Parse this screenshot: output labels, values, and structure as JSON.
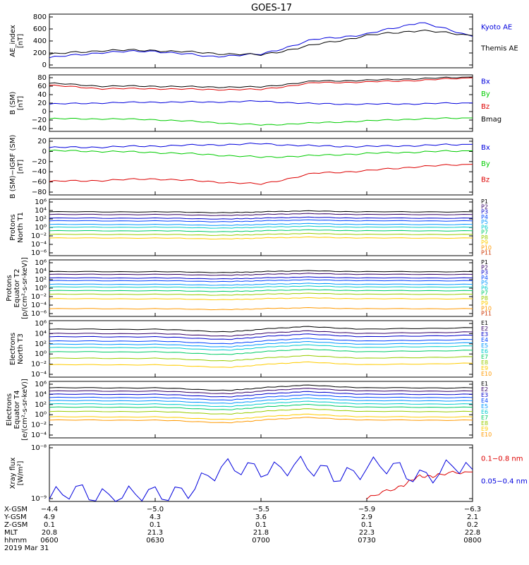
{
  "title": "GOES-17",
  "colors": {
    "black": "#000000",
    "blue": "#0000dd",
    "green": "#00cc00",
    "red": "#dd0000",
    "p": [
      "#000000",
      "#330066",
      "#0000cc",
      "#0044ff",
      "#0099ff",
      "#00cccc",
      "#00cc66",
      "#99cc00",
      "#ffcc00",
      "#ff9900",
      "#cc3300"
    ]
  },
  "panels": [
    {
      "ylabel": [
        "AE_index",
        "[nT]"
      ],
      "ticks": [
        "800",
        "600",
        "400",
        "200",
        "0"
      ],
      "legend": [
        {
          "text": "Kyoto AE",
          "color": "blue"
        },
        {
          "text": "Themis AE",
          "color": "black"
        }
      ]
    },
    {
      "ylabel": [
        "B (SM)",
        "[nT]"
      ],
      "ticks": [
        "80",
        "60",
        "40",
        "20",
        "0",
        "−20",
        "−40"
      ],
      "legend": [
        {
          "text": "Bx",
          "color": "blue"
        },
        {
          "text": "By",
          "color": "green"
        },
        {
          "text": "Bz",
          "color": "red"
        },
        {
          "text": "Bmag",
          "color": "black"
        }
      ]
    },
    {
      "ylabel": [
        "B (SM)−IGRF (SM)",
        "[nT]"
      ],
      "ticks": [
        "20",
        "0",
        "−20",
        "−40",
        "−60",
        "−80"
      ],
      "legend": [
        {
          "text": "Bx",
          "color": "blue"
        },
        {
          "text": "By",
          "color": "green"
        },
        {
          "text": "Bz",
          "color": "red"
        }
      ]
    },
    {
      "ylabel": [
        "Protons",
        "North T1"
      ],
      "ticks": [
        "10⁶",
        "10⁴",
        "10²",
        "10⁰",
        "10⁻²",
        "10⁻⁴",
        "10⁻⁶"
      ],
      "legend": [
        "P1",
        "P2",
        "P3",
        "P4",
        "P5",
        "P6",
        "P7",
        "P8",
        "P9",
        "P10",
        "P11"
      ]
    },
    {
      "ylabel": [
        "Protons",
        "Equator T2",
        "[p/(cm²-s-sr-keV)]"
      ],
      "ticks": [
        "10⁶",
        "10⁴",
        "10²",
        "10⁰",
        "10⁻²",
        "10⁻⁴",
        "10⁻⁶"
      ],
      "legend": [
        "P1",
        "P2",
        "P3",
        "P4",
        "P5",
        "P6",
        "P7",
        "P8",
        "P9",
        "P10",
        "P11"
      ]
    },
    {
      "ylabel": [
        "Electrons",
        "North T3"
      ],
      "ticks": [
        "10⁶",
        "10⁴",
        "10²",
        "10⁰",
        "10⁻²",
        "10⁻⁴"
      ],
      "legend": [
        "E1",
        "E2",
        "E3",
        "E4",
        "E5",
        "E6",
        "E7",
        "E8",
        "E9",
        "E10"
      ]
    },
    {
      "ylabel": [
        "Electrons",
        "Equator T4",
        "[e/(cm²-s-sr-keV)]"
      ],
      "ticks": [
        "10⁶",
        "10⁴",
        "10²",
        "10⁰",
        "10⁻²",
        "10⁻⁴"
      ],
      "legend": [
        "E1",
        "E2",
        "E3",
        "E4",
        "E5",
        "E6",
        "E7",
        "E8",
        "E9",
        "E10"
      ]
    },
    {
      "ylabel": [
        "Xray flux",
        "[W/m²]"
      ],
      "ticks": [
        "10⁻⁸",
        "10⁻⁹"
      ],
      "legend": [
        {
          "text": "0.1−0.8 nm",
          "color": "red"
        },
        {
          "text": "0.05−0.4 nm",
          "color": "blue"
        }
      ]
    }
  ],
  "footer": {
    "labels": [
      "X-GSM",
      "Y-GSM",
      "Z-GSM",
      "MLT",
      "hhmm",
      "2019 Mar 31"
    ],
    "columns": [
      [
        "−4.4",
        "4.9",
        "0.1",
        "20.8",
        "0600"
      ],
      [
        "−5.0",
        "4.3",
        "0.1",
        "21.3",
        "0630"
      ],
      [
        "−5.5",
        "3.6",
        "0.1",
        "21.8",
        "0700"
      ],
      [
        "−5.9",
        "2.9",
        "0.1",
        "22.3",
        "0730"
      ],
      [
        "−6.3",
        "2.1",
        "0.2",
        "22.8",
        "0800"
      ]
    ]
  },
  "chart_data": {
    "type": "line",
    "x_label": "hhmm",
    "x_ticks": [
      "0600",
      "0630",
      "0700",
      "0730",
      "0800"
    ],
    "panels": [
      {
        "name": "AE_index",
        "ylim": [
          0,
          800
        ],
        "x_hours": [
          6.0,
          6.25,
          6.5,
          6.75,
          7.0,
          7.25,
          7.5,
          7.75,
          8.0
        ],
        "series": [
          {
            "name": "Kyoto AE",
            "values": [
              150,
              230,
              250,
              170,
              200,
              420,
              500,
              680,
              470
            ]
          },
          {
            "name": "Themis AE",
            "values": [
              200,
              260,
              260,
              220,
              190,
              340,
              480,
              560,
              480
            ]
          }
        ]
      },
      {
        "name": "B (SM)",
        "ylim": [
          -50,
          85
        ],
        "x_hours": [
          6.0,
          6.25,
          6.5,
          6.75,
          7.0,
          7.25,
          7.5,
          7.75,
          8.0
        ],
        "series": [
          {
            "name": "Bx",
            "values": [
              15,
              18,
              20,
              20,
              22,
              16,
              15,
              16,
              18
            ]
          },
          {
            "name": "By",
            "values": [
              -20,
              -20,
              -22,
              -28,
              -35,
              -30,
              -25,
              -20,
              -18
            ]
          },
          {
            "name": "Bz",
            "values": [
              60,
              52,
              52,
              50,
              50,
              66,
              68,
              72,
              78
            ]
          },
          {
            "name": "Bmag",
            "values": [
              65,
              58,
              58,
              56,
              56,
              70,
              72,
              76,
              80
            ]
          }
        ]
      },
      {
        "name": "B (SM)−IGRF (SM)",
        "ylim": [
          -85,
          20
        ],
        "x_hours": [
          6.0,
          6.25,
          6.5,
          6.75,
          7.0,
          7.25,
          7.5,
          7.75,
          8.0
        ],
        "series": [
          {
            "name": "Bx",
            "values": [
              3,
              4,
              6,
              8,
              10,
              6,
              5,
              7,
              9
            ]
          },
          {
            "name": "By",
            "values": [
              -3,
              -4,
              -6,
              -10,
              -15,
              -12,
              -8,
              -5,
              -3
            ]
          },
          {
            "name": "Bz",
            "values": [
              -60,
              -58,
              -55,
              -60,
              -65,
              -45,
              -40,
              -32,
              -28
            ]
          }
        ]
      },
      {
        "name": "Protons North T1",
        "scale": "log",
        "ylim_exp": [
          -6.5,
          6
        ],
        "channels": [
          "P1",
          "P2",
          "P3",
          "P4",
          "P5",
          "P6",
          "P7",
          "P8",
          "P9",
          "P10",
          "P11"
        ],
        "log10_levels": [
          3.2,
          2.6,
          1.8,
          1.2,
          0.4,
          -0.2,
          -1.0,
          -1.8,
          -2.6,
          null,
          null
        ]
      },
      {
        "name": "Protons Equator T2",
        "scale": "log",
        "ylim_exp": [
          -6.5,
          6
        ],
        "channels": [
          "P1",
          "P2",
          "P3",
          "P4",
          "P5",
          "P6",
          "P7",
          "P8",
          "P9",
          "P10",
          "P11"
        ],
        "log10_levels": [
          3.4,
          2.8,
          2.0,
          1.4,
          0.6,
          0.0,
          -0.8,
          -1.6,
          -2.6,
          -4.8,
          null
        ]
      },
      {
        "name": "Electrons North T3",
        "scale": "log",
        "ylim_exp": [
          -4.5,
          6
        ],
        "channels": [
          "E1",
          "E2",
          "E3",
          "E4",
          "E5",
          "E6",
          "E7",
          "E8",
          "E9",
          "E10"
        ],
        "log10_levels": [
          4.4,
          3.6,
          3.0,
          2.2,
          1.6,
          1.0,
          0.2,
          -1.0,
          -2.2,
          null
        ]
      },
      {
        "name": "Electrons Equator T4",
        "scale": "log",
        "ylim_exp": [
          -4.5,
          6
        ],
        "channels": [
          "E1",
          "E2",
          "E3",
          "E4",
          "E5",
          "E6",
          "E7",
          "E8",
          "E9",
          "E10"
        ],
        "log10_levels": [
          4.8,
          4.2,
          3.6,
          3.0,
          2.4,
          1.8,
          1.2,
          0.4,
          -0.6,
          -1.2
        ]
      },
      {
        "name": "Xray flux",
        "scale": "log",
        "ylim": [
          "1e-9",
          "1e-8"
        ],
        "series": [
          {
            "name": "0.1−0.8 nm",
            "x_hours": [
              7.5,
              7.65,
              7.75,
              7.85,
              8.0
            ],
            "log10_values": [
              -9.05,
              -8.8,
              -8.6,
              -8.55,
              -8.5
            ]
          },
          {
            "name": "0.05−0.4 nm",
            "x_hours": [
              6.0,
              6.25,
              6.5,
              6.75,
              7.0,
              7.25,
              7.5,
              7.75,
              8.0
            ],
            "log10_values": [
              -9.05,
              -8.9,
              -9.05,
              -8.6,
              -8.35,
              -8.5,
              -8.45,
              -8.5,
              -8.45
            ]
          }
        ]
      }
    ]
  }
}
